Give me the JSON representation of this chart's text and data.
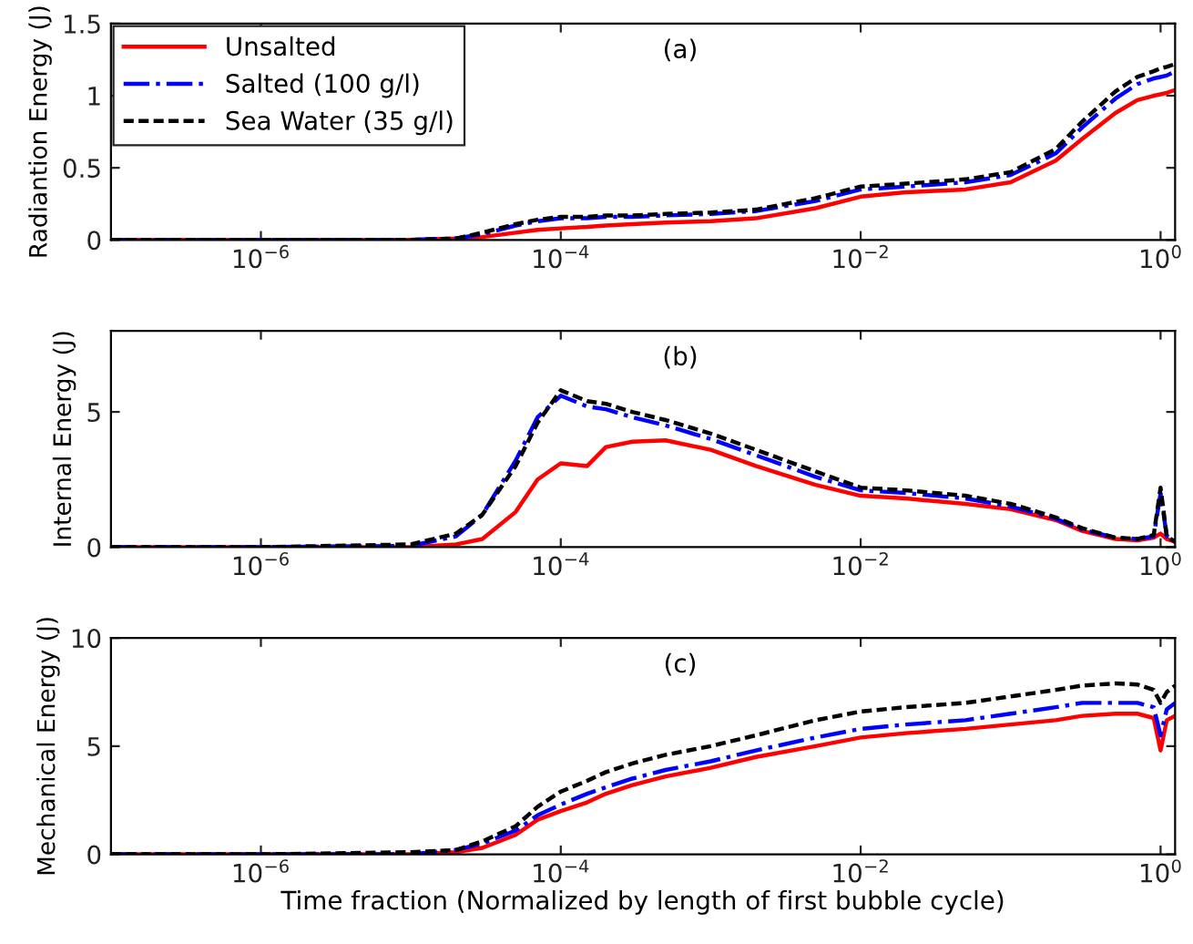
{
  "chart_data": [
    {
      "type": "line",
      "ylabel": "Radiantion Energy (J)",
      "annotations": [
        "(a)"
      ],
      "log": "x",
      "legend": "top left",
      "grid": false,
      "x": [
        1e-07,
        1e-06,
        1e-05,
        2e-05,
        3e-05,
        5e-05,
        7e-05,
        0.0001,
        0.00015,
        0.0002,
        0.0003,
        0.0005,
        0.001,
        0.002,
        0.005,
        0.01,
        0.02,
        0.05,
        0.1,
        0.2,
        0.3,
        0.5,
        0.7,
        0.9,
        1,
        1.1,
        1.25
      ],
      "xlim": [
        1e-07,
        1.25
      ],
      "xticks": [
        {
          "value": 1e-06,
          "label": "10$^{−6}$"
        },
        {
          "value": 0.0001,
          "label": "10$^{−4}$"
        },
        {
          "value": 0.01,
          "label": "10$^{−2}$"
        },
        {
          "value": 1,
          "label": "10$^{0}$"
        }
      ],
      "ylim": [
        0,
        1.5
      ],
      "yticks": [
        0,
        0.5,
        1,
        1.5
      ],
      "series": [
        {
          "name": "Unsalted",
          "color": "#ff0000",
          "line_style": "solid",
          "values": [
            0,
            0,
            0,
            0.01,
            0.02,
            0.05,
            0.07,
            0.08,
            0.09,
            0.1,
            0.11,
            0.12,
            0.13,
            0.15,
            0.22,
            0.3,
            0.33,
            0.35,
            0.4,
            0.55,
            0.7,
            0.88,
            0.97,
            1.0,
            1.01,
            1.02,
            1.04
          ]
        },
        {
          "name": "Salted (100 g/l)",
          "color": "#0000ff",
          "line_style": "dashdot",
          "values": [
            0,
            0,
            0,
            0.01,
            0.04,
            0.1,
            0.13,
            0.15,
            0.15,
            0.16,
            0.16,
            0.17,
            0.18,
            0.2,
            0.27,
            0.35,
            0.37,
            0.4,
            0.45,
            0.6,
            0.78,
            0.98,
            1.08,
            1.12,
            1.13,
            1.14,
            1.17
          ]
        },
        {
          "name": "Sea Water (35 g/l)",
          "color": "#000000",
          "line_style": "dashed",
          "values": [
            0,
            0,
            0,
            0.01,
            0.05,
            0.11,
            0.14,
            0.16,
            0.16,
            0.17,
            0.17,
            0.18,
            0.19,
            0.21,
            0.29,
            0.37,
            0.39,
            0.42,
            0.47,
            0.63,
            0.82,
            1.03,
            1.13,
            1.17,
            1.19,
            1.2,
            1.22
          ]
        }
      ]
    },
    {
      "type": "line",
      "ylabel": "Internal Energy (J)",
      "annotations": [
        "(b)"
      ],
      "log": "x",
      "grid": false,
      "x": [
        1e-07,
        1e-06,
        1e-05,
        2e-05,
        3e-05,
        5e-05,
        7e-05,
        0.0001,
        0.00015,
        0.0002,
        0.0003,
        0.0005,
        0.001,
        0.002,
        0.005,
        0.01,
        0.02,
        0.05,
        0.1,
        0.2,
        0.3,
        0.5,
        0.7,
        0.9,
        1,
        1.1,
        1.25
      ],
      "xlim": [
        1e-07,
        1.25
      ],
      "xticks": [
        {
          "value": 1e-06,
          "label": "10$^{−6}$"
        },
        {
          "value": 0.0001,
          "label": "10$^{−4}$"
        },
        {
          "value": 0.01,
          "label": "10$^{−2}$"
        },
        {
          "value": 1,
          "label": "10$^{0}$"
        }
      ],
      "ylim": [
        0,
        8
      ],
      "yticks": [
        0,
        5
      ],
      "series": [
        {
          "color": "#ff0000",
          "line_style": "solid",
          "values": [
            0,
            0,
            0,
            0.1,
            0.3,
            1.3,
            2.5,
            3.1,
            3.0,
            3.7,
            3.9,
            3.95,
            3.6,
            3.0,
            2.3,
            1.9,
            1.8,
            1.6,
            1.4,
            1.0,
            0.6,
            0.3,
            0.25,
            0.35,
            0.5,
            0.3,
            0.2
          ]
        },
        {
          "color": "#0000ff",
          "line_style": "dashdot",
          "values": [
            0,
            0,
            0.05,
            0.4,
            1.2,
            3.2,
            4.8,
            5.6,
            5.2,
            5.1,
            4.8,
            4.5,
            4.0,
            3.4,
            2.6,
            2.1,
            2.0,
            1.8,
            1.5,
            1.05,
            0.65,
            0.35,
            0.3,
            0.4,
            2.0,
            0.4,
            0.2
          ]
        },
        {
          "color": "#000000",
          "line_style": "dashed",
          "values": [
            0,
            0,
            0.1,
            0.5,
            1.2,
            3.0,
            4.6,
            5.8,
            5.4,
            5.3,
            5.0,
            4.7,
            4.2,
            3.6,
            2.8,
            2.2,
            2.1,
            1.9,
            1.6,
            1.1,
            0.7,
            0.35,
            0.3,
            0.45,
            2.2,
            0.4,
            0.2
          ]
        }
      ]
    },
    {
      "type": "line",
      "ylabel": "Mechanical Energy (J)",
      "xlabel": "Time fraction (Normalized by length of first bubble cycle)",
      "annotations": [
        "(c)"
      ],
      "log": "x",
      "grid": false,
      "x": [
        1e-07,
        1e-06,
        1e-05,
        2e-05,
        3e-05,
        5e-05,
        7e-05,
        0.0001,
        0.00015,
        0.0002,
        0.0003,
        0.0005,
        0.001,
        0.002,
        0.005,
        0.01,
        0.02,
        0.05,
        0.1,
        0.2,
        0.3,
        0.5,
        0.7,
        0.9,
        1,
        1.1,
        1.25
      ],
      "xlim": [
        1e-07,
        1.25
      ],
      "xticks": [
        {
          "value": 1e-06,
          "label": "10$^{−6}$"
        },
        {
          "value": 0.0001,
          "label": "10$^{−4}$"
        },
        {
          "value": 0.01,
          "label": "10$^{−2}$"
        },
        {
          "value": 1,
          "label": "10$^{0}$"
        }
      ],
      "ylim": [
        0,
        10
      ],
      "yticks": [
        0,
        5,
        10
      ],
      "series": [
        {
          "color": "#ff0000",
          "line_style": "solid",
          "values": [
            0,
            0,
            0,
            0.1,
            0.3,
            0.9,
            1.6,
            2.0,
            2.4,
            2.8,
            3.2,
            3.6,
            4.0,
            4.5,
            5.0,
            5.4,
            5.6,
            5.8,
            6.0,
            6.2,
            6.4,
            6.5,
            6.5,
            6.3,
            4.8,
            6.2,
            6.4
          ]
        },
        {
          "color": "#0000ff",
          "line_style": "dashdot",
          "values": [
            0,
            0,
            0,
            0.2,
            0.5,
            1.1,
            1.8,
            2.3,
            2.8,
            3.1,
            3.5,
            3.9,
            4.3,
            4.8,
            5.4,
            5.8,
            6.0,
            6.2,
            6.5,
            6.8,
            7.0,
            7.0,
            7.0,
            6.8,
            5.5,
            6.7,
            7.0
          ]
        },
        {
          "color": "#000000",
          "line_style": "dashed",
          "values": [
            0,
            0,
            0.1,
            0.2,
            0.6,
            1.3,
            2.2,
            2.9,
            3.4,
            3.8,
            4.2,
            4.6,
            5.0,
            5.5,
            6.2,
            6.6,
            6.8,
            7.0,
            7.3,
            7.6,
            7.8,
            7.9,
            7.85,
            7.6,
            7.0,
            7.5,
            7.8
          ]
        }
      ]
    }
  ]
}
